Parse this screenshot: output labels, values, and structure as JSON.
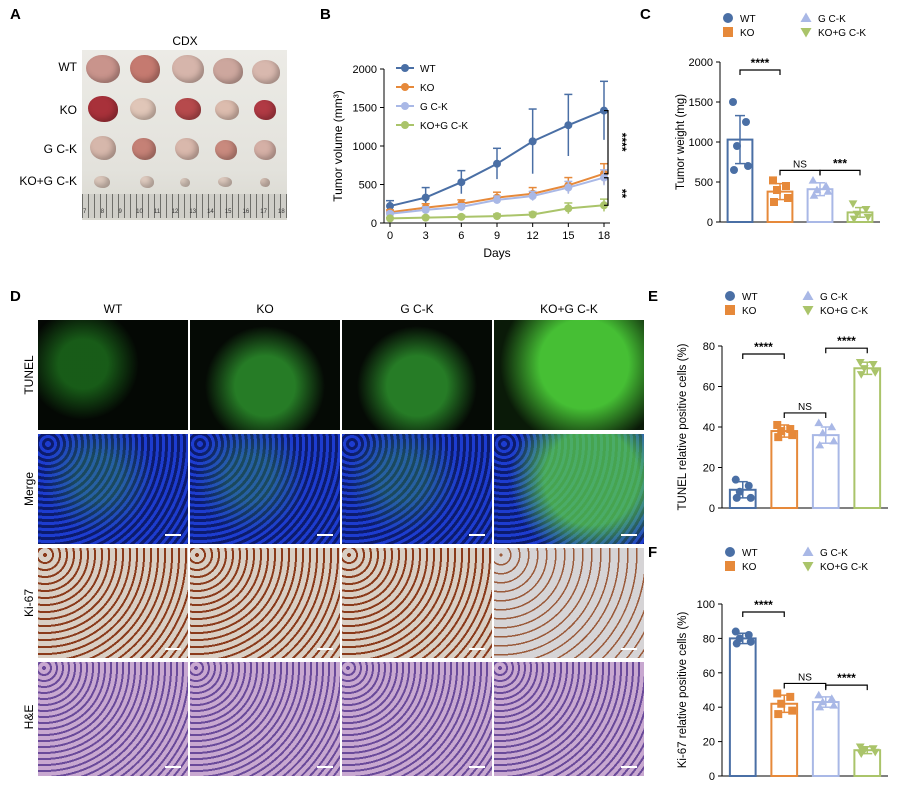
{
  "panel_letters": [
    "A",
    "B",
    "C",
    "D",
    "E",
    "F"
  ],
  "panel_a": {
    "title": "CDX",
    "rows": [
      "WT",
      "KO",
      "G C-K",
      "KO+G C-K"
    ],
    "ruler_numbers": [
      "7",
      "8",
      "9",
      "10",
      "11",
      "12",
      "13",
      "14",
      "15",
      "16",
      "17",
      "18"
    ]
  },
  "panel_d": {
    "columns": [
      "WT",
      "KO",
      "G C-K",
      "KO+G C-K"
    ],
    "rows": [
      "TUNEL",
      "Merge",
      "Ki-67",
      "H&E"
    ]
  },
  "colors": {
    "WT": "#4a6fa5",
    "KO": "#e6893a",
    "GCK": "#a9b8e6",
    "KOGCK": "#aac46a"
  },
  "chart_data": [
    {
      "panel": "B",
      "type": "line",
      "title": "",
      "xlabel": "Days",
      "ylabel": "Tumor volume (mm³)",
      "x": [
        0,
        3,
        6,
        9,
        12,
        15,
        18
      ],
      "xlim": [
        0,
        18
      ],
      "ylim": [
        0,
        2000
      ],
      "yticks": [
        0,
        500,
        1000,
        1500,
        2000
      ],
      "legend_placement": "top-left",
      "series": [
        {
          "name": "WT",
          "values": [
            220,
            330,
            530,
            770,
            1060,
            1270,
            1460
          ],
          "errors": [
            70,
            130,
            150,
            200,
            420,
            400,
            380
          ]
        },
        {
          "name": "KO",
          "values": [
            140,
            200,
            250,
            330,
            380,
            490,
            640
          ],
          "errors": [
            30,
            50,
            50,
            70,
            80,
            100,
            130
          ]
        },
        {
          "name": "G C-K",
          "values": [
            120,
            170,
            210,
            300,
            350,
            460,
            590
          ],
          "errors": [
            20,
            40,
            40,
            50,
            60,
            80,
            100
          ]
        },
        {
          "name": "KO+G C-K",
          "values": [
            60,
            70,
            80,
            90,
            110,
            190,
            230
          ],
          "errors": [
            10,
            15,
            20,
            25,
            30,
            70,
            80
          ]
        }
      ],
      "annotations": [
        "****",
        "**"
      ]
    },
    {
      "panel": "C",
      "type": "bar",
      "ylabel": "Tumor weight (mg)",
      "ylim": [
        0,
        2000
      ],
      "yticks": [
        0,
        500,
        1000,
        1500,
        2000
      ],
      "categories": [
        "WT",
        "KO",
        "G C-K",
        "KO+G C-K"
      ],
      "values": [
        1030,
        380,
        410,
        120
      ],
      "errors": [
        300,
        100,
        80,
        60
      ],
      "points": [
        [
          1500,
          1250,
          950,
          700,
          650
        ],
        [
          520,
          450,
          400,
          300,
          250
        ],
        [
          520,
          450,
          400,
          380,
          330
        ],
        [
          230,
          160,
          100,
          60,
          40
        ]
      ],
      "legend_placement": "top",
      "significance": [
        {
          "from": 0,
          "to": 1,
          "label": "****"
        },
        {
          "from": 1,
          "to": 2,
          "label": "NS"
        },
        {
          "from": 2,
          "to": 3,
          "label": "***"
        }
      ]
    },
    {
      "panel": "E",
      "type": "bar",
      "ylabel": "TUNEL relative positive cells (%)",
      "ylim": [
        0,
        80
      ],
      "yticks": [
        0,
        20,
        40,
        60,
        80
      ],
      "categories": [
        "WT",
        "KO",
        "G C-K",
        "KO+G C-K"
      ],
      "values": [
        9,
        38,
        36,
        69
      ],
      "errors": [
        4,
        3,
        4,
        3
      ],
      "points": [
        [
          14,
          11,
          8,
          5,
          5
        ],
        [
          41,
          39,
          38,
          36,
          35
        ],
        [
          42,
          40,
          37,
          33,
          31
        ],
        [
          72,
          71,
          69,
          67,
          66
        ]
      ],
      "legend_placement": "top",
      "significance": [
        {
          "from": 0,
          "to": 1,
          "label": "****"
        },
        {
          "from": 1,
          "to": 2,
          "label": "NS"
        },
        {
          "from": 2,
          "to": 3,
          "label": "****"
        }
      ]
    },
    {
      "panel": "F",
      "type": "bar",
      "ylabel": "Ki-67 relative positive cells (%)",
      "ylim": [
        0,
        100
      ],
      "yticks": [
        0,
        20,
        40,
        60,
        80,
        100
      ],
      "categories": [
        "WT",
        "KO",
        "G C-K",
        "KO+G C-K"
      ],
      "values": [
        80,
        42,
        43,
        15
      ],
      "errors": [
        3,
        5,
        3,
        2
      ],
      "points": [
        [
          84,
          82,
          80,
          78,
          77
        ],
        [
          48,
          46,
          42,
          38,
          36
        ],
        [
          47,
          45,
          43,
          41,
          40
        ],
        [
          17,
          16,
          15,
          14,
          13
        ]
      ],
      "legend_placement": "top",
      "significance": [
        {
          "from": 0,
          "to": 1,
          "label": "****"
        },
        {
          "from": 1,
          "to": 2,
          "label": "NS"
        },
        {
          "from": 2,
          "to": 3,
          "label": "****"
        }
      ]
    }
  ]
}
